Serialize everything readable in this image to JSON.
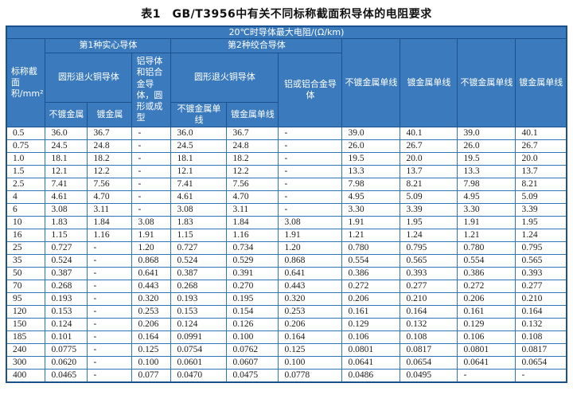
{
  "title": "表1　GB/T3956中有关不同标称截面积导体的电阻要求",
  "colors": {
    "header_bg": "#3a7abd",
    "header_border": "#1b518f",
    "grid_border": "#2e75b6",
    "text": "#1c1c1c"
  },
  "table": {
    "header": {
      "top": "20℃时导体最大电阻/(Ω/km)",
      "nominal_area": "标称截面积/mm²",
      "group_solid": "第1种实心导体",
      "group_stranded": "第2种绞合导体",
      "round_copper_solid": "圆形退火铜导体",
      "round_copper_stranded": "圆形退火铜导体",
      "al_solid": "铝导体和铝合金导体，圆形或成型",
      "al_stranded": "铝或铝合金导体",
      "unplated": "不镀金属",
      "plated": "镀金属",
      "unplated_wire": "不镀金属单线",
      "plated_wire": "镀金属单线",
      "right_columns": [
        "不镀金属单线",
        "镀金属单线",
        "不镀金属单线",
        "镀金属单线"
      ]
    },
    "rows": [
      [
        "0.5",
        "36.0",
        "36.7",
        "-",
        "36.0",
        "36.7",
        "-",
        "39.0",
        "40.1",
        "39.0",
        "40.1"
      ],
      [
        "0.75",
        "24.5",
        "24.8",
        "-",
        "24.5",
        "24.8",
        "-",
        "26.0",
        "26.7",
        "26.0",
        "26.7"
      ],
      [
        "1.0",
        "18.1",
        "18.2",
        "-",
        "18.1",
        "18.2",
        "-",
        "19.5",
        "20.0",
        "19.5",
        "20.0"
      ],
      [
        "1.5",
        "12.1",
        "12.2",
        "-",
        "12.1",
        "12.2",
        "-",
        "13.3",
        "13.7",
        "13.3",
        "13.7"
      ],
      [
        "2.5",
        "7.41",
        "7.56",
        "-",
        "7.41",
        "7.56",
        "-",
        "7.98",
        "8.21",
        "7.98",
        "8.21"
      ],
      [
        "4",
        "4.61",
        "4.70",
        "-",
        "4.61",
        "4.70",
        "-",
        "4.95",
        "5.09",
        "4.95",
        "5.09"
      ],
      [
        "6",
        "3.08",
        "3.11",
        "-",
        "3.08",
        "3.11",
        "-",
        "3.30",
        "3.39",
        "3.30",
        "3.39"
      ],
      [
        "10",
        "1.83",
        "1.84",
        "3.08",
        "1.83",
        "1.84",
        "3.08",
        "1.91",
        "1.95",
        "1.91",
        "1.95"
      ],
      [
        "16",
        "1.15",
        "1.16",
        "1.91",
        "1.15",
        "1.16",
        "1.91",
        "1.21",
        "1.24",
        "1.21",
        "1.24"
      ],
      [
        "25",
        "0.727",
        "-",
        "1.20",
        "0.727",
        "0.734",
        "1.20",
        "0.780",
        "0.795",
        "0.780",
        "0.795"
      ],
      [
        "35",
        "0.524",
        "-",
        "0.868",
        "0.524",
        "0.529",
        "0.868",
        "0.554",
        "0.565",
        "0.554",
        "0.565"
      ],
      [
        "50",
        "0.387",
        "-",
        "0.641",
        "0.387",
        "0.391",
        "0.641",
        "0.386",
        "0.393",
        "0.386",
        "0.393"
      ],
      [
        "70",
        "0.268",
        "-",
        "0.443",
        "0.268",
        "0.270",
        "0.443",
        "0.272",
        "0.277",
        "0.272",
        "0.277"
      ],
      [
        "95",
        "0.193",
        "-",
        "0.320",
        "0.193",
        "0.195",
        "0.320",
        "0.206",
        "0.210",
        "0.206",
        "0.210"
      ],
      [
        "120",
        "0.153",
        "-",
        "0.253",
        "0.153",
        "0.154",
        "0.253",
        "0.161",
        "0.164",
        "0.161",
        "0.164"
      ],
      [
        "150",
        "0.124",
        "-",
        "0.206",
        "0.124",
        "0.126",
        "0.206",
        "0.129",
        "0.132",
        "0.129",
        "0.132"
      ],
      [
        "185",
        "0.101",
        "-",
        "0.164",
        "0.0991",
        "0.100",
        "0.164",
        "0.106",
        "0.108",
        "0.106",
        "0.108"
      ],
      [
        "240",
        "0.0775",
        "-",
        "0.125",
        "0.0754",
        "0.0762",
        "0.125",
        "0.0801",
        "0.0817",
        "0.0801",
        "0.0817"
      ],
      [
        "300",
        "0.0620",
        "-",
        "0.100",
        "0.0601",
        "0.0607",
        "0.100",
        "0.0641",
        "0.0654",
        "0.0641",
        "0.0654"
      ],
      [
        "400",
        "0.0465",
        "-",
        "0.077",
        "0.0470",
        "0.0475",
        "0.0778",
        "0.0486",
        "0.0495",
        "-",
        "-"
      ]
    ]
  }
}
